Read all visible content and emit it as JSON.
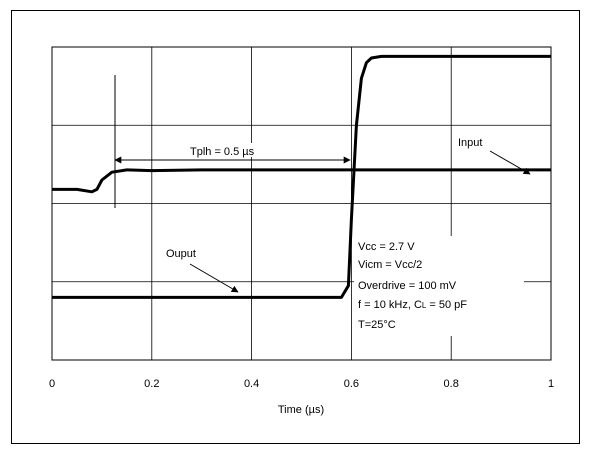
{
  "chart_data": {
    "type": "line",
    "title": "",
    "xlabel": "Time (µs)",
    "ylabel": "",
    "xlim": [
      0,
      1
    ],
    "ylim": [
      0,
      4
    ],
    "x_ticks": [
      "0",
      "0.2",
      "0.4",
      "0.6",
      "0.8",
      "1"
    ],
    "grid": true,
    "series": [
      {
        "name": "Input",
        "x": [
          0,
          0.05,
          0.08,
          0.09,
          0.1,
          0.12,
          0.15,
          0.2,
          0.3,
          0.6,
          0.8,
          1.0
        ],
        "y": [
          2.18,
          2.18,
          2.15,
          2.18,
          2.3,
          2.4,
          2.43,
          2.42,
          2.43,
          2.43,
          2.43,
          2.43
        ]
      },
      {
        "name": "Ouput",
        "x": [
          0,
          0.58,
          0.594,
          0.6,
          0.61,
          0.62,
          0.63,
          0.64,
          0.66,
          0.8,
          1.0
        ],
        "y": [
          0.8,
          0.8,
          0.95,
          1.8,
          3.0,
          3.6,
          3.8,
          3.86,
          3.88,
          3.88,
          3.88
        ]
      }
    ],
    "annotations": {
      "delay": "Tplh = 0.5 µs",
      "input_label": "Input",
      "output_label": "Ouput",
      "conditions": [
        "Vcc = 2.7 V",
        "Vicm = Vcc/2",
        "Overdrive = 100 mV",
        "f = 10 kHz, C",
        "T=25°C"
      ],
      "cl_subscript": "L",
      "cl_suffix": " = 50 pF"
    }
  }
}
